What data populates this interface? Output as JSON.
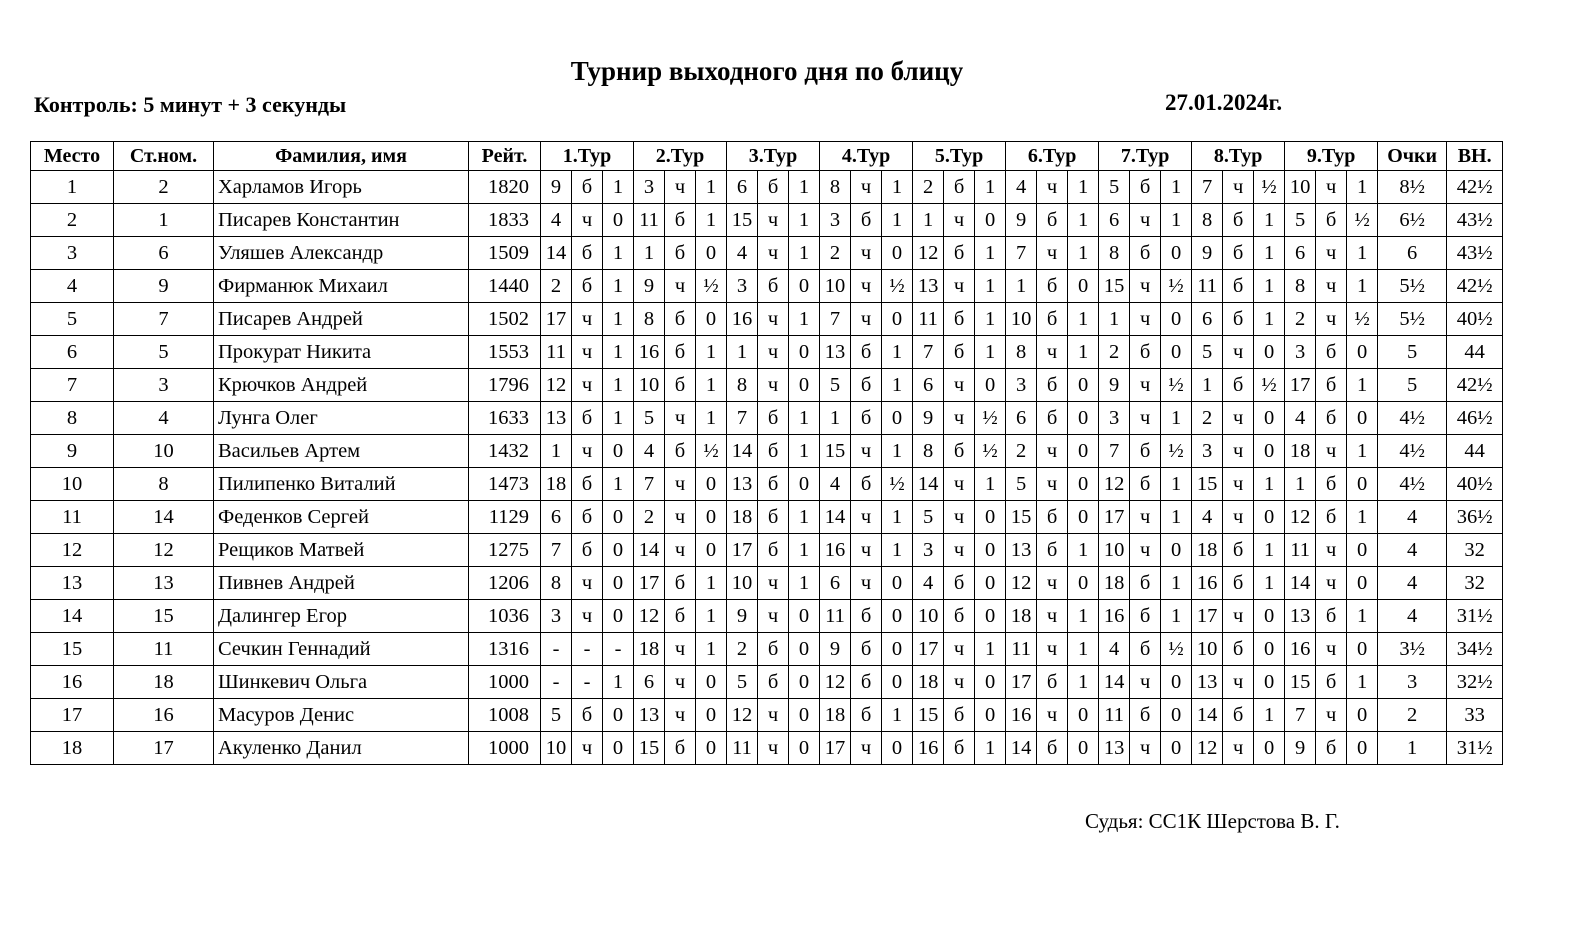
{
  "title": "Турнир выходного дня по блицу",
  "control": "Контроль: 5 минут + 3 секунды",
  "date": "27.01.2024г.",
  "judge": "Судья: СС1К Шерстова В. Г.",
  "headers": {
    "place": "Место",
    "start_no": "Ст.ном.",
    "name": "Фамилия, имя",
    "rating": "Рейт.",
    "rounds": [
      "1.Тур",
      "2.Тур",
      "3.Тур",
      "4.Тур",
      "5.Тур",
      "6.Тур",
      "7.Тур",
      "8.Тур",
      "9.Тур"
    ],
    "points": "Очки",
    "buchholz": "ВН."
  },
  "rows": [
    {
      "place": "1",
      "start_no": "2",
      "name": "Харламов Игорь",
      "rating": "1820",
      "rounds": [
        [
          "9",
          "б",
          "1"
        ],
        [
          "3",
          "ч",
          "1"
        ],
        [
          "6",
          "б",
          "1"
        ],
        [
          "8",
          "ч",
          "1"
        ],
        [
          "2",
          "б",
          "1"
        ],
        [
          "4",
          "ч",
          "1"
        ],
        [
          "5",
          "б",
          "1"
        ],
        [
          "7",
          "ч",
          "½"
        ],
        [
          "10",
          "ч",
          "1"
        ]
      ],
      "points": "8½",
      "buchholz": "42½"
    },
    {
      "place": "2",
      "start_no": "1",
      "name": "Писарев Константин",
      "rating": "1833",
      "rounds": [
        [
          "4",
          "ч",
          "0"
        ],
        [
          "11",
          "б",
          "1"
        ],
        [
          "15",
          "ч",
          "1"
        ],
        [
          "3",
          "б",
          "1"
        ],
        [
          "1",
          "ч",
          "0"
        ],
        [
          "9",
          "б",
          "1"
        ],
        [
          "6",
          "ч",
          "1"
        ],
        [
          "8",
          "б",
          "1"
        ],
        [
          "5",
          "б",
          "½"
        ]
      ],
      "points": "6½",
      "buchholz": "43½"
    },
    {
      "place": "3",
      "start_no": "6",
      "name": "Уляшев Александр",
      "rating": "1509",
      "rounds": [
        [
          "14",
          "б",
          "1"
        ],
        [
          "1",
          "б",
          "0"
        ],
        [
          "4",
          "ч",
          "1"
        ],
        [
          "2",
          "ч",
          "0"
        ],
        [
          "12",
          "б",
          "1"
        ],
        [
          "7",
          "ч",
          "1"
        ],
        [
          "8",
          "б",
          "0"
        ],
        [
          "9",
          "б",
          "1"
        ],
        [
          "6",
          "ч",
          "1"
        ]
      ],
      "points": "6",
      "buchholz": "43½"
    },
    {
      "place": "4",
      "start_no": "9",
      "name": "Фирманюк Михаил",
      "rating": "1440",
      "rounds": [
        [
          "2",
          "б",
          "1"
        ],
        [
          "9",
          "ч",
          "½"
        ],
        [
          "3",
          "б",
          "0"
        ],
        [
          "10",
          "ч",
          "½"
        ],
        [
          "13",
          "ч",
          "1"
        ],
        [
          "1",
          "б",
          "0"
        ],
        [
          "15",
          "ч",
          "½"
        ],
        [
          "11",
          "б",
          "1"
        ],
        [
          "8",
          "ч",
          "1"
        ]
      ],
      "points": "5½",
      "buchholz": "42½"
    },
    {
      "place": "5",
      "start_no": "7",
      "name": "Писарев Андрей",
      "rating": "1502",
      "rounds": [
        [
          "17",
          "ч",
          "1"
        ],
        [
          "8",
          "б",
          "0"
        ],
        [
          "16",
          "ч",
          "1"
        ],
        [
          "7",
          "ч",
          "0"
        ],
        [
          "11",
          "б",
          "1"
        ],
        [
          "10",
          "б",
          "1"
        ],
        [
          "1",
          "ч",
          "0"
        ],
        [
          "6",
          "б",
          "1"
        ],
        [
          "2",
          "ч",
          "½"
        ]
      ],
      "points": "5½",
      "buchholz": "40½"
    },
    {
      "place": "6",
      "start_no": "5",
      "name": "Прокурат Никита",
      "rating": "1553",
      "rounds": [
        [
          "11",
          "ч",
          "1"
        ],
        [
          "16",
          "б",
          "1"
        ],
        [
          "1",
          "ч",
          "0"
        ],
        [
          "13",
          "б",
          "1"
        ],
        [
          "7",
          "б",
          "1"
        ],
        [
          "8",
          "ч",
          "1"
        ],
        [
          "2",
          "б",
          "0"
        ],
        [
          "5",
          "ч",
          "0"
        ],
        [
          "3",
          "б",
          "0"
        ]
      ],
      "points": "5",
      "buchholz": "44"
    },
    {
      "place": "7",
      "start_no": "3",
      "name": "Крючков Андрей",
      "rating": "1796",
      "rounds": [
        [
          "12",
          "ч",
          "1"
        ],
        [
          "10",
          "б",
          "1"
        ],
        [
          "8",
          "ч",
          "0"
        ],
        [
          "5",
          "б",
          "1"
        ],
        [
          "6",
          "ч",
          "0"
        ],
        [
          "3",
          "б",
          "0"
        ],
        [
          "9",
          "ч",
          "½"
        ],
        [
          "1",
          "б",
          "½"
        ],
        [
          "17",
          "б",
          "1"
        ]
      ],
      "points": "5",
      "buchholz": "42½"
    },
    {
      "place": "8",
      "start_no": "4",
      "name": "Лунга Олег",
      "rating": "1633",
      "rounds": [
        [
          "13",
          "б",
          "1"
        ],
        [
          "5",
          "ч",
          "1"
        ],
        [
          "7",
          "б",
          "1"
        ],
        [
          "1",
          "б",
          "0"
        ],
        [
          "9",
          "ч",
          "½"
        ],
        [
          "6",
          "б",
          "0"
        ],
        [
          "3",
          "ч",
          "1"
        ],
        [
          "2",
          "ч",
          "0"
        ],
        [
          "4",
          "б",
          "0"
        ]
      ],
      "points": "4½",
      "buchholz": "46½"
    },
    {
      "place": "9",
      "start_no": "10",
      "name": "Васильев Артем",
      "rating": "1432",
      "rounds": [
        [
          "1",
          "ч",
          "0"
        ],
        [
          "4",
          "б",
          "½"
        ],
        [
          "14",
          "б",
          "1"
        ],
        [
          "15",
          "ч",
          "1"
        ],
        [
          "8",
          "б",
          "½"
        ],
        [
          "2",
          "ч",
          "0"
        ],
        [
          "7",
          "б",
          "½"
        ],
        [
          "3",
          "ч",
          "0"
        ],
        [
          "18",
          "ч",
          "1"
        ]
      ],
      "points": "4½",
      "buchholz": "44"
    },
    {
      "place": "10",
      "start_no": "8",
      "name": "Пилипенко Виталий",
      "rating": "1473",
      "rounds": [
        [
          "18",
          "б",
          "1"
        ],
        [
          "7",
          "ч",
          "0"
        ],
        [
          "13",
          "б",
          "0"
        ],
        [
          "4",
          "б",
          "½"
        ],
        [
          "14",
          "ч",
          "1"
        ],
        [
          "5",
          "ч",
          "0"
        ],
        [
          "12",
          "б",
          "1"
        ],
        [
          "15",
          "ч",
          "1"
        ],
        [
          "1",
          "б",
          "0"
        ]
      ],
      "points": "4½",
      "buchholz": "40½"
    },
    {
      "place": "11",
      "start_no": "14",
      "name": "Феденков Сергей",
      "rating": "1129",
      "rounds": [
        [
          "6",
          "б",
          "0"
        ],
        [
          "2",
          "ч",
          "0"
        ],
        [
          "18",
          "б",
          "1"
        ],
        [
          "14",
          "ч",
          "1"
        ],
        [
          "5",
          "ч",
          "0"
        ],
        [
          "15",
          "б",
          "0"
        ],
        [
          "17",
          "ч",
          "1"
        ],
        [
          "4",
          "ч",
          "0"
        ],
        [
          "12",
          "б",
          "1"
        ]
      ],
      "points": "4",
      "buchholz": "36½"
    },
    {
      "place": "12",
      "start_no": "12",
      "name": "Рещиков Матвей",
      "rating": "1275",
      "rounds": [
        [
          "7",
          "б",
          "0"
        ],
        [
          "14",
          "ч",
          "0"
        ],
        [
          "17",
          "б",
          "1"
        ],
        [
          "16",
          "ч",
          "1"
        ],
        [
          "3",
          "ч",
          "0"
        ],
        [
          "13",
          "б",
          "1"
        ],
        [
          "10",
          "ч",
          "0"
        ],
        [
          "18",
          "б",
          "1"
        ],
        [
          "11",
          "ч",
          "0"
        ]
      ],
      "points": "4",
      "buchholz": "32"
    },
    {
      "place": "13",
      "start_no": "13",
      "name": "Пивнев Андрей",
      "rating": "1206",
      "rounds": [
        [
          "8",
          "ч",
          "0"
        ],
        [
          "17",
          "б",
          "1"
        ],
        [
          "10",
          "ч",
          "1"
        ],
        [
          "6",
          "ч",
          "0"
        ],
        [
          "4",
          "б",
          "0"
        ],
        [
          "12",
          "ч",
          "0"
        ],
        [
          "18",
          "б",
          "1"
        ],
        [
          "16",
          "б",
          "1"
        ],
        [
          "14",
          "ч",
          "0"
        ]
      ],
      "points": "4",
      "buchholz": "32"
    },
    {
      "place": "14",
      "start_no": "15",
      "name": "Далингер Егор",
      "rating": "1036",
      "rounds": [
        [
          "3",
          "ч",
          "0"
        ],
        [
          "12",
          "б",
          "1"
        ],
        [
          "9",
          "ч",
          "0"
        ],
        [
          "11",
          "б",
          "0"
        ],
        [
          "10",
          "б",
          "0"
        ],
        [
          "18",
          "ч",
          "1"
        ],
        [
          "16",
          "б",
          "1"
        ],
        [
          "17",
          "ч",
          "0"
        ],
        [
          "13",
          "б",
          "1"
        ]
      ],
      "points": "4",
      "buchholz": "31½"
    },
    {
      "place": "15",
      "start_no": "11",
      "name": "Сечкин Геннадий",
      "rating": "1316",
      "rounds": [
        [
          "-",
          "-",
          "-"
        ],
        [
          "18",
          "ч",
          "1"
        ],
        [
          "2",
          "б",
          "0"
        ],
        [
          "9",
          "б",
          "0"
        ],
        [
          "17",
          "ч",
          "1"
        ],
        [
          "11",
          "ч",
          "1"
        ],
        [
          "4",
          "б",
          "½"
        ],
        [
          "10",
          "б",
          "0"
        ],
        [
          "16",
          "ч",
          "0"
        ]
      ],
      "points": "3½",
      "buchholz": "34½"
    },
    {
      "place": "16",
      "start_no": "18",
      "name": "Шинкевич Ольга",
      "rating": "1000",
      "rounds": [
        [
          "-",
          "-",
          "1"
        ],
        [
          "6",
          "ч",
          "0"
        ],
        [
          "5",
          "б",
          "0"
        ],
        [
          "12",
          "б",
          "0"
        ],
        [
          "18",
          "ч",
          "0"
        ],
        [
          "17",
          "б",
          "1"
        ],
        [
          "14",
          "ч",
          "0"
        ],
        [
          "13",
          "ч",
          "0"
        ],
        [
          "15",
          "б",
          "1"
        ]
      ],
      "points": "3",
      "buchholz": "32½"
    },
    {
      "place": "17",
      "start_no": "16",
      "name": "Масуров Денис",
      "rating": "1008",
      "rounds": [
        [
          "5",
          "б",
          "0"
        ],
        [
          "13",
          "ч",
          "0"
        ],
        [
          "12",
          "ч",
          "0"
        ],
        [
          "18",
          "б",
          "1"
        ],
        [
          "15",
          "б",
          "0"
        ],
        [
          "16",
          "ч",
          "0"
        ],
        [
          "11",
          "б",
          "0"
        ],
        [
          "14",
          "б",
          "1"
        ],
        [
          "7",
          "ч",
          "0"
        ]
      ],
      "points": "2",
      "buchholz": "33"
    },
    {
      "place": "18",
      "start_no": "17",
      "name": "Акуленко Данил",
      "rating": "1000",
      "rounds": [
        [
          "10",
          "ч",
          "0"
        ],
        [
          "15",
          "б",
          "0"
        ],
        [
          "11",
          "ч",
          "0"
        ],
        [
          "17",
          "ч",
          "0"
        ],
        [
          "16",
          "б",
          "1"
        ],
        [
          "14",
          "б",
          "0"
        ],
        [
          "13",
          "ч",
          "0"
        ],
        [
          "12",
          "ч",
          "0"
        ],
        [
          "9",
          "б",
          "0"
        ]
      ],
      "points": "1",
      "buchholz": "31½"
    }
  ]
}
